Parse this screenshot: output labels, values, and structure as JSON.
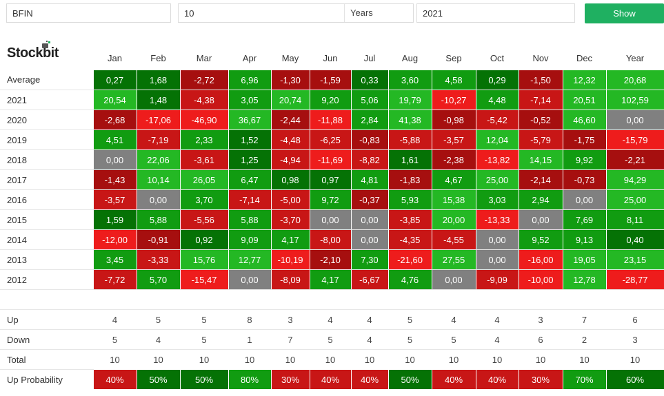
{
  "form": {
    "ticker_value": "BFIN",
    "years_value": "10",
    "years_suffix": "Years",
    "year_value": "2021",
    "show_label": "Show"
  },
  "brand": {
    "logo_text": "Stockbit"
  },
  "colors": {
    "accent": "#1fb061",
    "dark_green": "#057205",
    "mid_green": "#119c11",
    "light_green": "#24b824",
    "dark_red": "#a60f0f",
    "mid_red": "#c81616",
    "bright_red": "#ee1c1c",
    "gray": "#808080"
  },
  "columns": [
    "Jan",
    "Feb",
    "Mar",
    "Apr",
    "May",
    "Jun",
    "Jul",
    "Aug",
    "Sep",
    "Oct",
    "Nov",
    "Dec",
    "Year"
  ],
  "rows": [
    {
      "label": "Average",
      "values": [
        "0,27",
        "1,68",
        "-2,72",
        "6,96",
        "-1,30",
        "-1,59",
        "0,33",
        "3,60",
        "4,58",
        "0,29",
        "-1,50",
        "12,32",
        "20,68"
      ]
    },
    {
      "label": "2021",
      "values": [
        "20,54",
        "1,48",
        "-4,38",
        "3,05",
        "20,74",
        "9,20",
        "5,06",
        "19,79",
        "-10,27",
        "4,48",
        "-7,14",
        "20,51",
        "102,59"
      ]
    },
    {
      "label": "2020",
      "values": [
        "-2,68",
        "-17,06",
        "-46,90",
        "36,67",
        "-2,44",
        "-11,88",
        "2,84",
        "41,38",
        "-0,98",
        "-5,42",
        "-0,52",
        "46,60",
        "0,00"
      ]
    },
    {
      "label": "2019",
      "values": [
        "4,51",
        "-7,19",
        "2,33",
        "1,52",
        "-4,48",
        "-6,25",
        "-0,83",
        "-5,88",
        "-3,57",
        "12,04",
        "-5,79",
        "-1,75",
        "-15,79"
      ]
    },
    {
      "label": "2018",
      "values": [
        "0,00",
        "22,06",
        "-3,61",
        "1,25",
        "-4,94",
        "-11,69",
        "-8,82",
        "1,61",
        "-2,38",
        "-13,82",
        "14,15",
        "9,92",
        "-2,21"
      ]
    },
    {
      "label": "2017",
      "values": [
        "-1,43",
        "10,14",
        "26,05",
        "6,47",
        "0,98",
        "0,97",
        "4,81",
        "-1,83",
        "4,67",
        "25,00",
        "-2,14",
        "-0,73",
        "94,29"
      ]
    },
    {
      "label": "2016",
      "values": [
        "-3,57",
        "0,00",
        "3,70",
        "-7,14",
        "-5,00",
        "9,72",
        "-0,37",
        "5,93",
        "15,38",
        "3,03",
        "2,94",
        "0,00",
        "25,00"
      ]
    },
    {
      "label": "2015",
      "values": [
        "1,59",
        "5,88",
        "-5,56",
        "5,88",
        "-3,70",
        "0,00",
        "0,00",
        "-3,85",
        "20,00",
        "-13,33",
        "0,00",
        "7,69",
        "8,11"
      ]
    },
    {
      "label": "2014",
      "values": [
        "-12,00",
        "-0,91",
        "0,92",
        "9,09",
        "4,17",
        "-8,00",
        "0,00",
        "-4,35",
        "-4,55",
        "0,00",
        "9,52",
        "9,13",
        "0,40"
      ]
    },
    {
      "label": "2013",
      "values": [
        "3,45",
        "-3,33",
        "15,76",
        "12,77",
        "-10,19",
        "-2,10",
        "7,30",
        "-21,60",
        "27,55",
        "0,00",
        "-16,00",
        "19,05",
        "23,15"
      ]
    },
    {
      "label": "2012",
      "values": [
        "-7,72",
        "5,70",
        "-15,47",
        "0,00",
        "-8,09",
        "4,17",
        "-6,67",
        "4,76",
        "0,00",
        "-9,09",
        "-10,00",
        "12,78",
        "-28,77"
      ]
    }
  ],
  "stats": [
    {
      "label": "Up",
      "values": [
        "4",
        "5",
        "5",
        "8",
        "3",
        "4",
        "4",
        "5",
        "4",
        "4",
        "3",
        "7",
        "6"
      ]
    },
    {
      "label": "Down",
      "values": [
        "5",
        "4",
        "5",
        "1",
        "7",
        "5",
        "4",
        "5",
        "5",
        "4",
        "6",
        "2",
        "3"
      ]
    },
    {
      "label": "Total",
      "values": [
        "10",
        "10",
        "10",
        "10",
        "10",
        "10",
        "10",
        "10",
        "10",
        "10",
        "10",
        "10",
        "10"
      ]
    },
    {
      "label": "Up Probability",
      "values": [
        "40%",
        "50%",
        "50%",
        "80%",
        "30%",
        "40%",
        "40%",
        "50%",
        "40%",
        "40%",
        "30%",
        "70%",
        "60%"
      ],
      "colored": true
    }
  ]
}
